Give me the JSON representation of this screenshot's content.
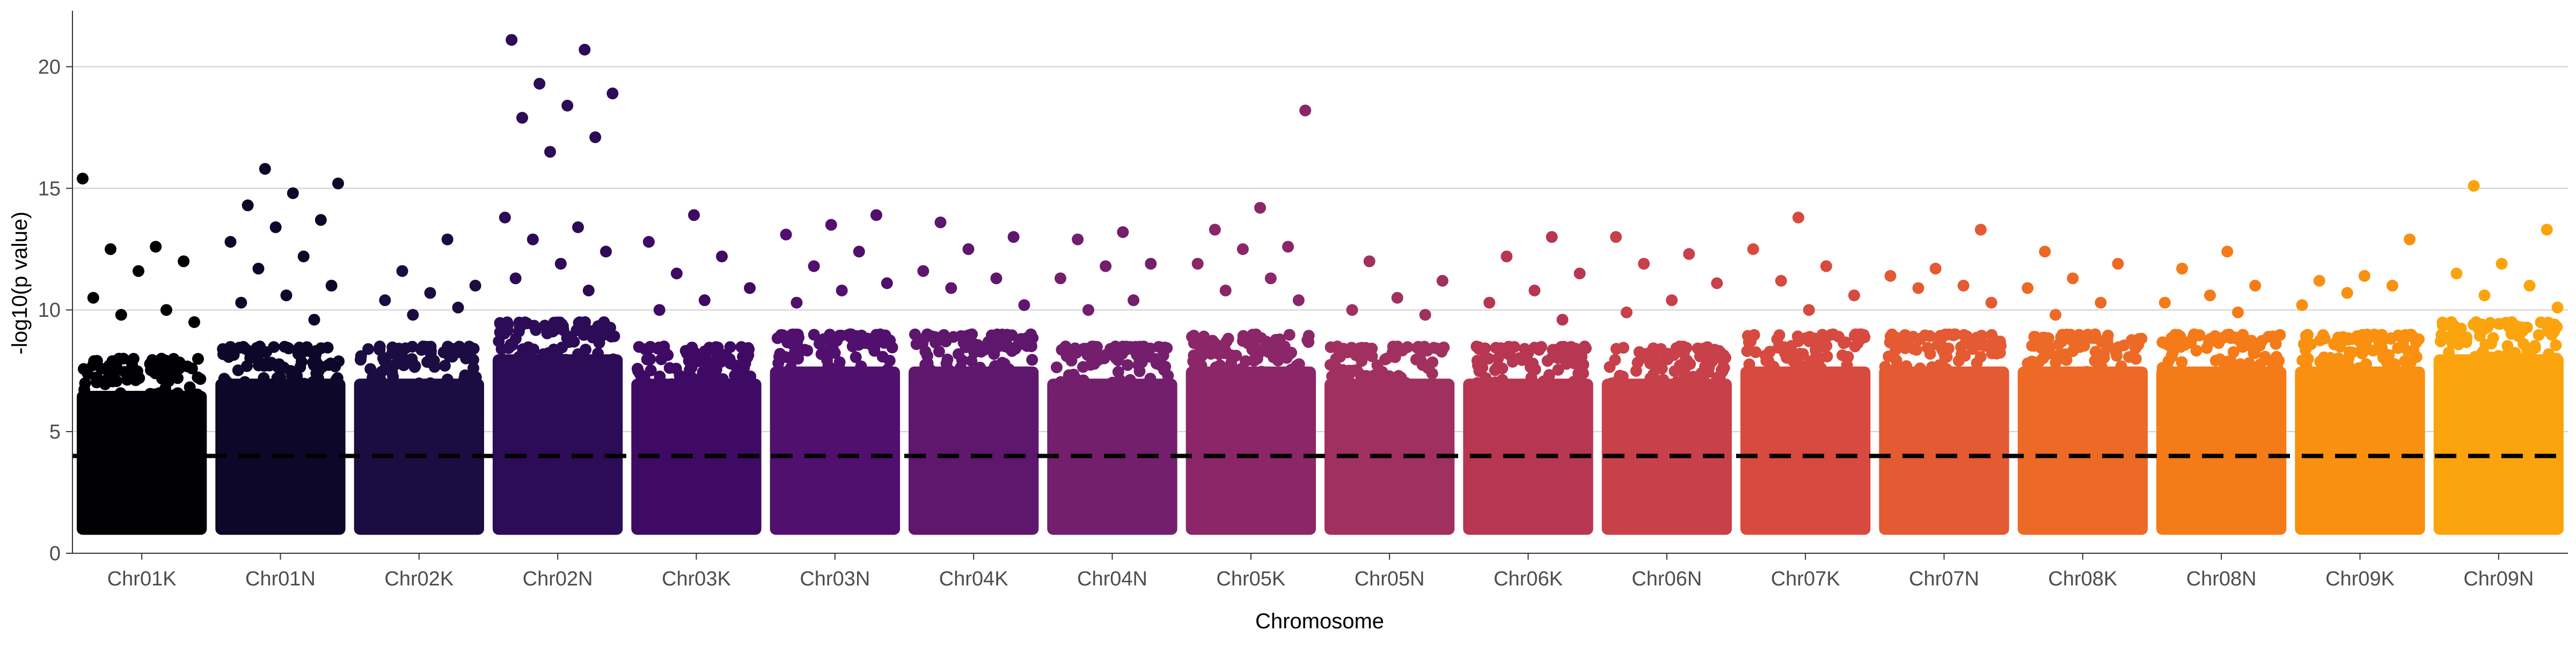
{
  "chart_data": {
    "type": "scatter",
    "subtype": "manhattan",
    "title": "",
    "xlabel": "Chromosome",
    "ylabel": "-log10(p value)",
    "ylim": [
      0,
      22.3
    ],
    "yticks": [
      0,
      5,
      10,
      15,
      20
    ],
    "y_grid": true,
    "x_grid": false,
    "legend": "none",
    "threshold": {
      "y": 4,
      "style": "dashed",
      "color": "#000000"
    },
    "point_floor": 1,
    "categories": [
      "Chr01K",
      "Chr01N",
      "Chr02K",
      "Chr02N",
      "Chr03K",
      "Chr03N",
      "Chr04K",
      "Chr04N",
      "Chr05K",
      "Chr05N",
      "Chr06K",
      "Chr06N",
      "Chr07K",
      "Chr07N",
      "Chr08K",
      "Chr08N",
      "Chr09K",
      "Chr09N"
    ],
    "colors": [
      "#000004",
      "#0d0829",
      "#1b0c41",
      "#2c0b57",
      "#3e0a63",
      "#51106e",
      "#5f176d",
      "#731f6d",
      "#8b2668",
      "#a0305f",
      "#b73652",
      "#c8404a",
      "#d74a3f",
      "#e35a33",
      "#ec6a26",
      "#f47b18",
      "#f99010",
      "#fba40e"
    ],
    "series": [
      {
        "name": "Chr01K",
        "dense_max": 8.0,
        "peaks": [
          15.4,
          12.6,
          12.5,
          12.0,
          11.6,
          10.5,
          10.0,
          9.8,
          9.5
        ]
      },
      {
        "name": "Chr01N",
        "dense_max": 8.5,
        "peaks": [
          15.8,
          15.2,
          14.8,
          14.3,
          13.7,
          13.4,
          12.8,
          12.2,
          11.7,
          11.0,
          10.6,
          10.3,
          9.6
        ]
      },
      {
        "name": "Chr02K",
        "dense_max": 8.5,
        "peaks": [
          12.9,
          11.6,
          11.0,
          10.7,
          10.4,
          10.1,
          9.8
        ]
      },
      {
        "name": "Chr02N",
        "dense_max": 9.5,
        "peaks": [
          21.1,
          20.7,
          19.3,
          18.9,
          18.4,
          17.9,
          17.1,
          16.5,
          13.8,
          13.4,
          12.9,
          12.4,
          11.9,
          11.3,
          10.8
        ]
      },
      {
        "name": "Chr03K",
        "dense_max": 8.5,
        "peaks": [
          13.9,
          12.8,
          12.2,
          11.5,
          10.9,
          10.4,
          10.0
        ]
      },
      {
        "name": "Chr03N",
        "dense_max": 9.0,
        "peaks": [
          13.9,
          13.5,
          13.1,
          12.4,
          11.8,
          11.1,
          10.8,
          10.3
        ]
      },
      {
        "name": "Chr04K",
        "dense_max": 9.0,
        "peaks": [
          13.6,
          13.0,
          12.5,
          11.6,
          11.3,
          10.9,
          10.2
        ]
      },
      {
        "name": "Chr04N",
        "dense_max": 8.5,
        "peaks": [
          13.2,
          12.9,
          11.9,
          11.8,
          11.3,
          10.4,
          10.0
        ]
      },
      {
        "name": "Chr05K",
        "dense_max": 9.0,
        "peaks": [
          18.2,
          14.2,
          13.3,
          12.6,
          12.5,
          11.9,
          11.3,
          10.8,
          10.4
        ]
      },
      {
        "name": "Chr05N",
        "dense_max": 8.5,
        "peaks": [
          12.0,
          11.2,
          10.5,
          10.0,
          9.8
        ]
      },
      {
        "name": "Chr06K",
        "dense_max": 8.5,
        "peaks": [
          13.0,
          12.2,
          11.5,
          10.8,
          10.3,
          9.6
        ]
      },
      {
        "name": "Chr06N",
        "dense_max": 8.5,
        "peaks": [
          13.0,
          12.3,
          11.9,
          11.1,
          10.4,
          9.9
        ]
      },
      {
        "name": "Chr07K",
        "dense_max": 9.0,
        "peaks": [
          13.8,
          12.5,
          11.8,
          11.2,
          10.6,
          10.0
        ]
      },
      {
        "name": "Chr07N",
        "dense_max": 9.0,
        "peaks": [
          13.3,
          11.7,
          11.4,
          11.0,
          10.9,
          10.3
        ]
      },
      {
        "name": "Chr08K",
        "dense_max": 9.0,
        "peaks": [
          12.4,
          11.9,
          11.3,
          10.9,
          10.3,
          9.8
        ]
      },
      {
        "name": "Chr08N",
        "dense_max": 9.0,
        "peaks": [
          12.4,
          11.7,
          11.0,
          10.6,
          10.3,
          9.9
        ]
      },
      {
        "name": "Chr09K",
        "dense_max": 9.0,
        "peaks": [
          12.9,
          11.4,
          11.2,
          11.0,
          10.7,
          10.2
        ]
      },
      {
        "name": "Chr09N",
        "dense_max": 9.5,
        "peaks": [
          15.1,
          13.3,
          11.9,
          11.5,
          11.0,
          10.6,
          10.1
        ]
      }
    ]
  }
}
